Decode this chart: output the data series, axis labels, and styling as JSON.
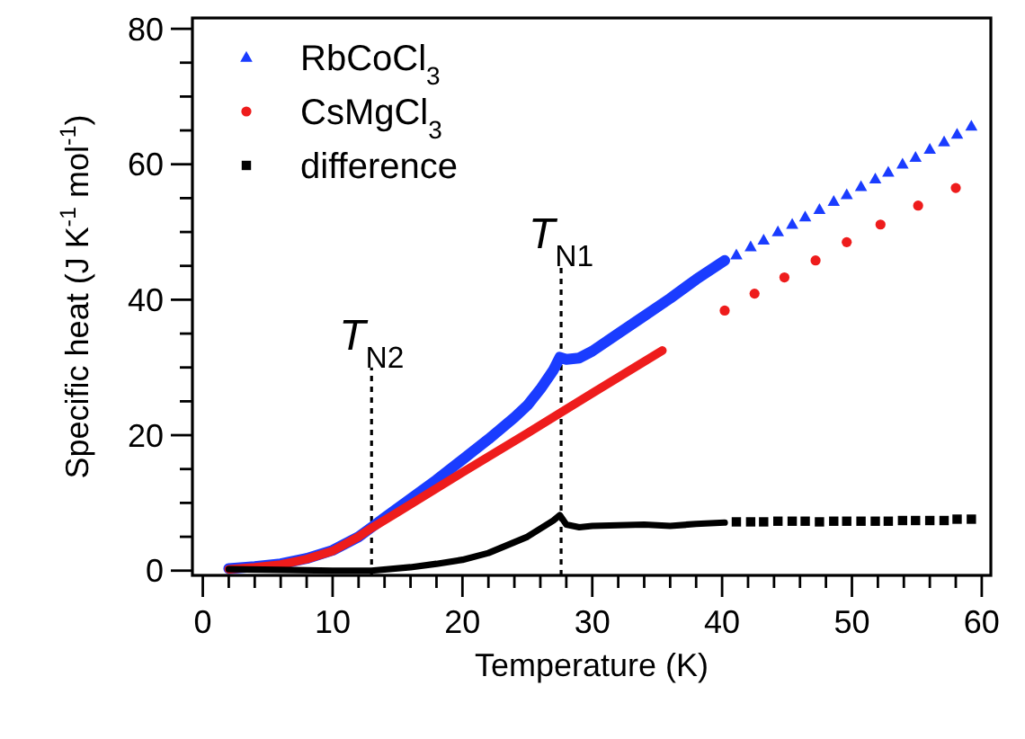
{
  "chart_data": {
    "type": "scatter",
    "xlabel": "Temperature (K)",
    "ylabel": "Specific heat (J K$^{-1}$ mol$^{-1}$)",
    "xlim": [
      -0.8,
      60.7
    ],
    "ylim": [
      -0.7,
      81.6
    ],
    "xticks": [
      0,
      {
        "value": 2,
        "label": null
      },
      {
        "value": 4,
        "label": null
      },
      {
        "value": 6,
        "label": null
      },
      {
        "value": 8,
        "label": null
      },
      10,
      {
        "value": 12,
        "label": null
      },
      {
        "value": 14,
        "label": null
      },
      {
        "value": 16,
        "label": null
      },
      {
        "value": 18,
        "label": null
      },
      20,
      {
        "value": 22,
        "label": null
      },
      {
        "value": 24,
        "label": null
      },
      {
        "value": 26,
        "label": null
      },
      {
        "value": 28,
        "label": null
      },
      30,
      {
        "value": 32,
        "label": null
      },
      {
        "value": 34,
        "label": null
      },
      {
        "value": 36,
        "label": null
      },
      {
        "value": 38,
        "label": null
      },
      40,
      {
        "value": 42,
        "label": null
      },
      {
        "value": 44,
        "label": null
      },
      {
        "value": 46,
        "label": null
      },
      {
        "value": 48,
        "label": null
      },
      50,
      {
        "value": 52,
        "label": null
      },
      {
        "value": 54,
        "label": null
      },
      {
        "value": 56,
        "label": null
      },
      {
        "value": 58,
        "label": null
      },
      60
    ],
    "yticks": [
      0,
      {
        "value": 5,
        "label": null
      },
      {
        "value": 10,
        "label": null
      },
      {
        "value": 15,
        "label": null
      },
      20,
      {
        "value": 25,
        "label": null
      },
      {
        "value": 30,
        "label": null
      },
      {
        "value": 35,
        "label": null
      },
      40,
      {
        "value": 45,
        "label": null
      },
      {
        "value": 50,
        "label": null
      },
      {
        "value": 55,
        "label": null
      },
      60,
      {
        "value": 65,
        "label": null
      },
      {
        "value": 70,
        "label": null
      },
      {
        "value": 75,
        "label": null
      },
      80
    ],
    "grid": false,
    "legend": "top left",
    "series": [
      {
        "type": "line",
        "color": "#1a3cff",
        "x": [
          2,
          4,
          6,
          8,
          10,
          12,
          13,
          14,
          16,
          18,
          20,
          22,
          24,
          25,
          26,
          27,
          27.5,
          28,
          29,
          30,
          32,
          34,
          36,
          38,
          40.2
        ],
        "values": [
          0.3,
          0.6,
          1.0,
          1.8,
          3.0,
          5.0,
          6.4,
          7.8,
          10.6,
          13.4,
          16.4,
          19.4,
          22.6,
          24.4,
          26.8,
          29.6,
          31.5,
          31.2,
          31.4,
          32.4,
          35,
          37.6,
          40.2,
          43,
          45.8
        ]
      },
      {
        "type": "line",
        "color": "#ee1c1c",
        "x": [
          2,
          4,
          6,
          8,
          10,
          12,
          13,
          15,
          20,
          25,
          27.3,
          30,
          35.4
        ],
        "values": [
          0.2,
          0.5,
          0.9,
          1.7,
          2.9,
          5.0,
          6.3,
          8.6,
          14.5,
          20.3,
          23.0,
          26.2,
          32.5
        ]
      },
      {
        "type": "line",
        "color": "#000000",
        "x": [
          2,
          6,
          10,
          13,
          16,
          18,
          20,
          22,
          24,
          25,
          26,
          27,
          27.5,
          28,
          29,
          30,
          32,
          34,
          36,
          38,
          40.2
        ],
        "values": [
          0.2,
          0.1,
          0,
          0,
          0.5,
          1.0,
          1.6,
          2.6,
          4.2,
          5.0,
          6.2,
          7.4,
          8.2,
          6.8,
          6.4,
          6.6,
          6.7,
          6.8,
          6.6,
          6.9,
          7.1
        ]
      },
      {
        "name": "RbCoCl$_{3}$",
        "color": "#1a3cff",
        "marker": "triangle",
        "x": [
          41.1,
          42.2,
          43.2,
          44.3,
          45.4,
          46.4,
          47.5,
          48.6,
          49.6,
          50.7,
          51.8,
          52.8,
          53.9,
          54.9,
          56.0,
          57.1,
          58.1,
          59.2
        ],
        "values": [
          46.6,
          47.8,
          48.8,
          50.0,
          51.1,
          52.2,
          53.3,
          54.5,
          55.5,
          56.7,
          57.8,
          58.8,
          60.0,
          61.0,
          62.2,
          63.3,
          64.4,
          65.6
        ]
      },
      {
        "name": "CsMgCl$_{3}$",
        "color": "#ee1c1c",
        "marker": "circle",
        "x": [
          40.2,
          42.5,
          44.8,
          47.2,
          49.6,
          52.2,
          55.1,
          58.0
        ],
        "values": [
          38.4,
          40.9,
          43.3,
          45.8,
          48.5,
          51.1,
          53.9,
          56.5
        ]
      },
      {
        "name": "difference",
        "color": "#000000",
        "marker": "square",
        "x": [
          41.1,
          42.2,
          43.2,
          44.3,
          45.4,
          46.4,
          47.5,
          48.6,
          49.6,
          50.7,
          51.8,
          52.8,
          53.9,
          54.9,
          56.0,
          57.1,
          58.1,
          59.2
        ],
        "values": [
          7.2,
          7.2,
          7.2,
          7.3,
          7.3,
          7.3,
          7.2,
          7.3,
          7.3,
          7.3,
          7.3,
          7.3,
          7.4,
          7.4,
          7.4,
          7.4,
          7.6,
          7.6
        ]
      }
    ],
    "ref_lines": [
      {
        "axis": "x",
        "value": 13,
        "line_style": "dotted",
        "color": "#000000"
      },
      {
        "axis": "x",
        "value": 27.6,
        "line_style": "dotted",
        "color": "#000000"
      }
    ],
    "annotations": [
      {
        "text": "T$_{N2}$",
        "x": 13,
        "y": 30
      },
      {
        "text": "T$_{N1}$",
        "x": 27.6,
        "y": 45
      }
    ]
  }
}
